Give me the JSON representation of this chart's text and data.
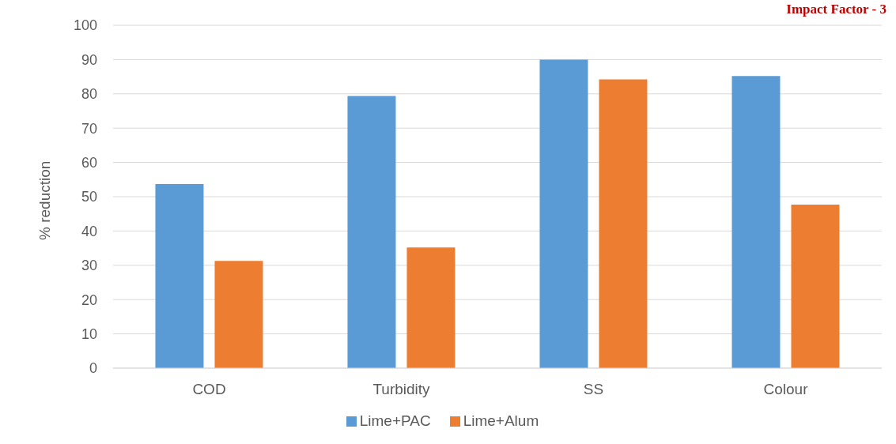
{
  "chart_data": {
    "type": "bar",
    "ylabel": "% reduction",
    "categories": [
      "COD",
      "Turbidity",
      "SS",
      "Colour"
    ],
    "series": [
      {
        "name": "Lime+PAC",
        "color": "#5b9bd5",
        "values": [
          53.7,
          79.4,
          90,
          85.2
        ]
      },
      {
        "name": "Lime+Alum",
        "color": "#ed7d31",
        "values": [
          31.3,
          35.2,
          84.2,
          47.7
        ]
      }
    ],
    "ylim": [
      0,
      100
    ],
    "yticks": [
      0,
      10,
      20,
      30,
      40,
      50,
      60,
      70,
      80,
      90,
      100
    ],
    "grid": "y",
    "legend": "bottom",
    "annotations": [
      "Impact Factor - 3"
    ]
  }
}
